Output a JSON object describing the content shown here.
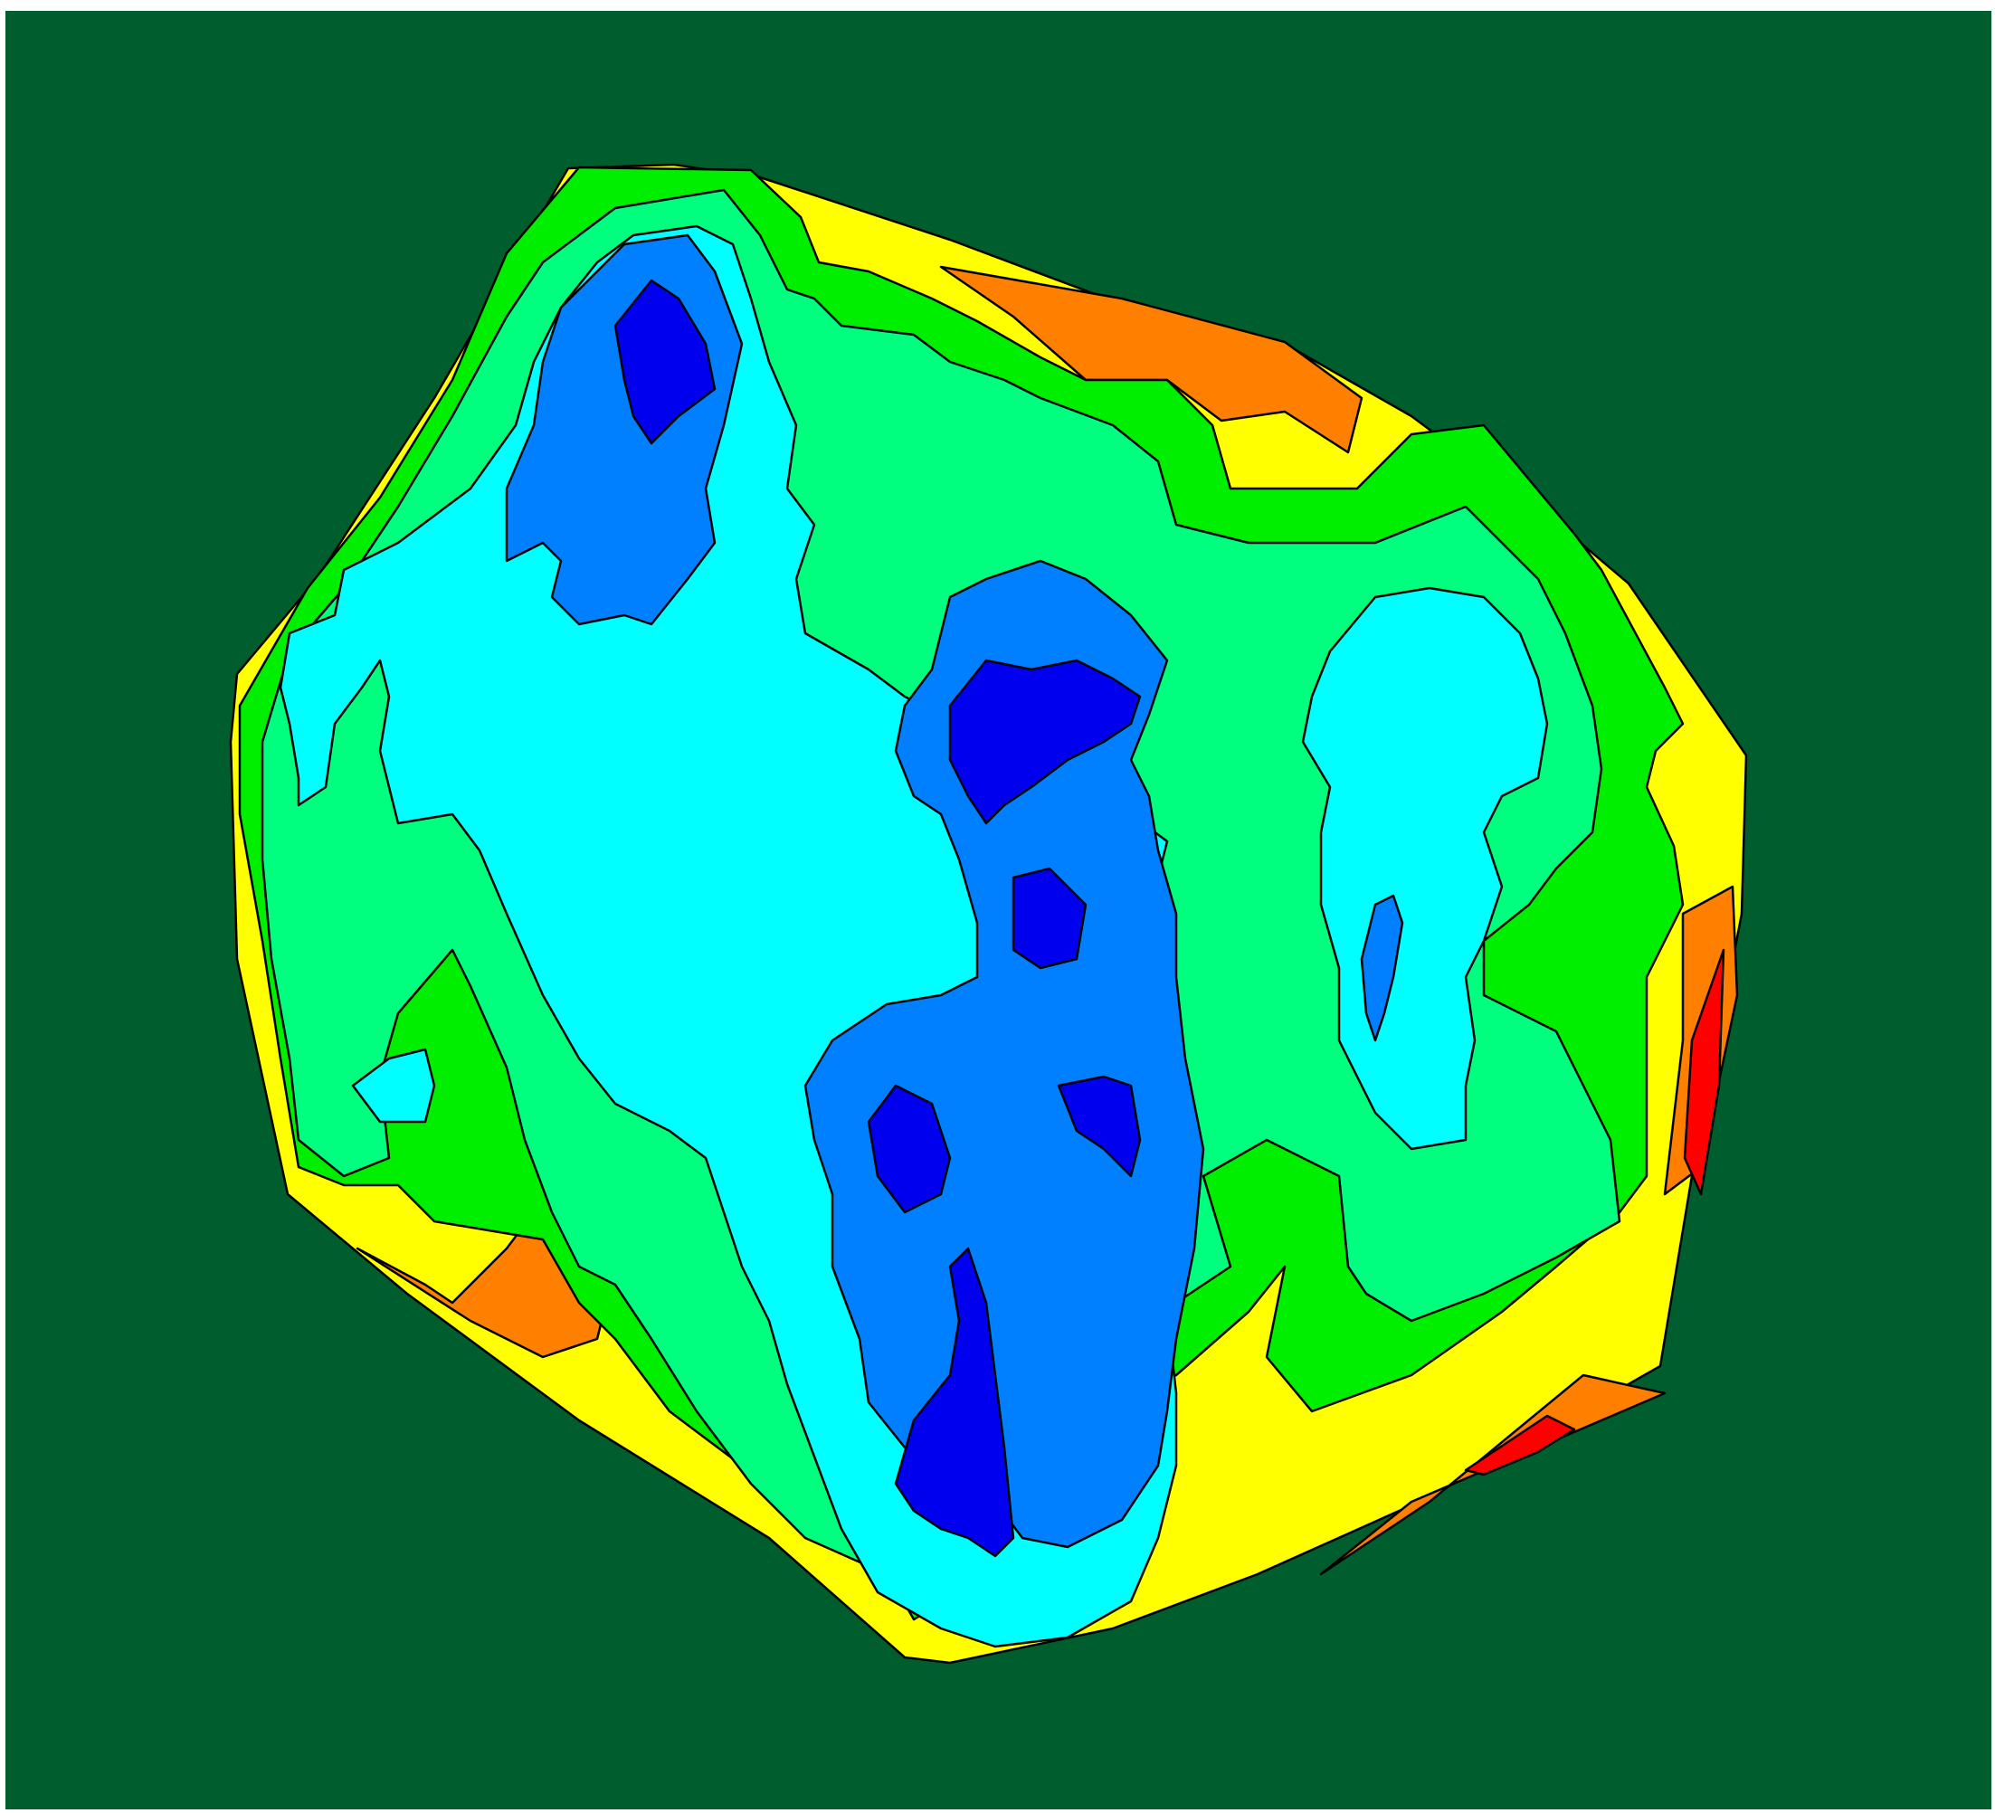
{
  "map": {
    "background_color": "#005e2e",
    "outline_color": "#000000",
    "legend": [],
    "color_scale": [
      {
        "level": 1,
        "color": "#0000ef"
      },
      {
        "level": 2,
        "color": "#0080ff"
      },
      {
        "level": 3,
        "color": "#00ffff"
      },
      {
        "level": 4,
        "color": "#00ff7f"
      },
      {
        "level": 5,
        "color": "#00ee00"
      },
      {
        "level": 6,
        "color": "#ffff00"
      },
      {
        "level": 7,
        "color": "#ff8000"
      },
      {
        "level": 8,
        "color": "#ff0000"
      }
    ]
  }
}
